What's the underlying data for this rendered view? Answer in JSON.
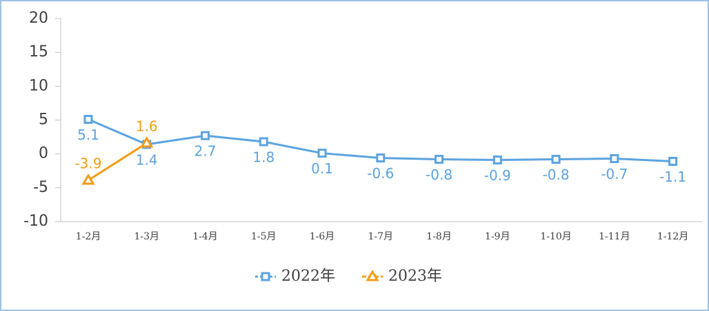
{
  "chart_data": {
    "type": "line",
    "categories": [
      "1-2月",
      "1-3月",
      "1-4月",
      "1-5月",
      "1-6月",
      "1-7月",
      "1-8月",
      "1-9月",
      "1-10月",
      "1-11月",
      "1-12月"
    ],
    "series": [
      {
        "name": "2022年",
        "color": "#5ba3e0",
        "marker": "square",
        "values": [
          5.1,
          1.4,
          2.7,
          1.8,
          0.1,
          -0.6,
          -0.8,
          -0.9,
          -0.8,
          -0.7,
          -1.1
        ]
      },
      {
        "name": "2023年",
        "color": "#f39c12",
        "marker": "triangle",
        "values": [
          -3.9,
          1.6,
          null,
          null,
          null,
          null,
          null,
          null,
          null,
          null,
          null
        ]
      }
    ],
    "ylim": [
      -10,
      20
    ],
    "yticks": [
      -10,
      -5,
      0,
      5,
      10,
      15,
      20
    ],
    "grid": false,
    "legend": "bottom"
  }
}
